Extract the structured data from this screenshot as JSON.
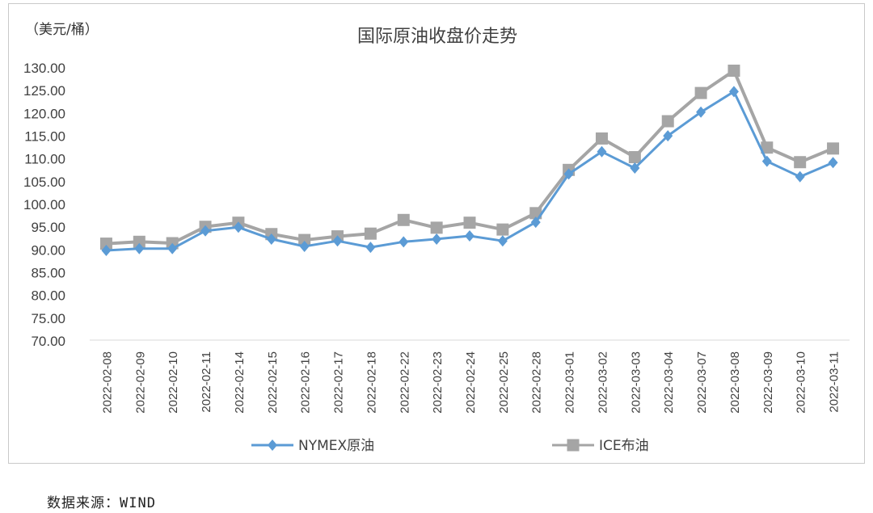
{
  "chart_data": {
    "type": "line",
    "title": "国际原油收盘价走势",
    "unit_label": "（美元/桶）",
    "ylim": [
      70,
      130
    ],
    "y_ticks": [
      "70.00",
      "75.00",
      "80.00",
      "85.00",
      "90.00",
      "95.00",
      "100.00",
      "105.00",
      "110.00",
      "115.00",
      "120.00",
      "125.00",
      "130.00"
    ],
    "categories": [
      "2022-02-08",
      "2022-02-09",
      "2022-02-10",
      "2022-02-11",
      "2022-02-14",
      "2022-02-15",
      "2022-02-16",
      "2022-02-17",
      "2022-02-18",
      "2022-02-22",
      "2022-02-23",
      "2022-02-24",
      "2022-02-25",
      "2022-02-28",
      "2022-03-01",
      "2022-03-02",
      "2022-03-03",
      "2022-03-04",
      "2022-03-07",
      "2022-03-08",
      "2022-03-09",
      "2022-03-10",
      "2022-03-11"
    ],
    "series": [
      {
        "name": "NYMEX原油",
        "color": "#5b9bd5",
        "marker": "diamond",
        "values": [
          89.7,
          90.1,
          90.1,
          94.0,
          94.8,
          92.2,
          90.6,
          91.8,
          90.4,
          91.6,
          92.2,
          92.9,
          91.8,
          95.9,
          106.5,
          111.4,
          107.8,
          114.9,
          120.1,
          124.6,
          109.3,
          105.9,
          109.0
        ]
      },
      {
        "name": "ICE布油",
        "color": "#a5a5a5",
        "marker": "square",
        "values": [
          91.2,
          91.6,
          91.3,
          94.9,
          95.8,
          93.3,
          92.0,
          92.8,
          93.4,
          96.4,
          94.7,
          95.8,
          94.3,
          97.9,
          107.4,
          114.3,
          110.2,
          118.1,
          124.3,
          129.2,
          112.3,
          109.1,
          112.1
        ]
      }
    ],
    "grid": false,
    "legend_position": "bottom"
  },
  "source": "数据来源：WIND"
}
